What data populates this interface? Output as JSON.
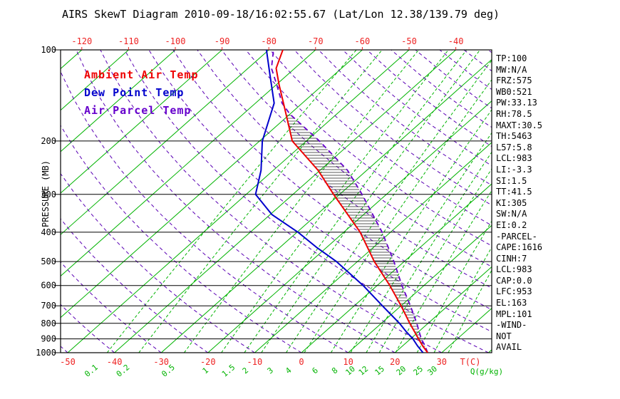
{
  "title": "AIRS SkewT Diagram 2010-09-18/16:02:55.67 (Lat/Lon 12.38/139.79 deg)",
  "legend": {
    "ambient": {
      "label": "Ambient Air Temp",
      "color": "#ee0000"
    },
    "dewpoint": {
      "label": "Dew Point Temp",
      "color": "#0000cc"
    },
    "parcel": {
      "label": "Air Parcel Temp",
      "color": "#6600cc"
    }
  },
  "stats": [
    "TP:100",
    "MW:N/A",
    "FRZ:575",
    "WB0:521",
    "PW:33.13",
    "RH:78.5",
    "MAXT:30.5",
    "TH:5463",
    "L57:5.8",
    "LCL:983",
    "LI:-3.3",
    "SI:1.5",
    "TT:41.5",
    "KI:305",
    "SW:N/A",
    "EI:0.2",
    "-PARCEL-",
    "CAPE:1616",
    "CINH:7",
    "LCL:983",
    "CAP:0.0",
    "LFC:953",
    "EL:163",
    "MPL:101",
    "-WIND-",
    "NOT",
    "AVAIL"
  ],
  "chart_data": {
    "type": "line",
    "subtype": "skewt-logp",
    "title": "AIRS SkewT Diagram 2010-09-18/16:02:55.67 (Lat/Lon 12.38/139.79 deg)",
    "xlabel": "T(C)",
    "ylabel": "PRESSURE (MB)",
    "q_axis_label": "Q(g/kg)",
    "pressure_scale": "log",
    "pressure_range": [
      100,
      1000
    ],
    "temp_range_bottom_axis": [
      -50,
      40
    ],
    "x_top_ticks": [
      -120,
      -110,
      -100,
      -90,
      -80,
      -70,
      -60,
      -50,
      -40
    ],
    "x_bottom_ticks": [
      -50,
      -40,
      -30,
      -20,
      -10,
      0,
      10,
      20,
      30
    ],
    "pressure_ticks": [
      100,
      200,
      300,
      400,
      500,
      600,
      700,
      800,
      900,
      1000
    ],
    "mixing_ratio_lines": [
      0.1,
      0.2,
      0.5,
      1,
      1.5,
      2,
      3,
      4,
      6,
      8,
      10,
      12,
      15,
      20,
      25,
      30
    ],
    "isotherm_step_c": 10,
    "dry_adiabat_step_c": 10,
    "grid": true,
    "legend_position": "upper-left-inside",
    "series": [
      {
        "name": "Ambient Air Temp",
        "color": "#ee0000",
        "style": "solid",
        "points_p_t": [
          [
            1000,
            27.0
          ],
          [
            950,
            24.3
          ],
          [
            900,
            21.7
          ],
          [
            850,
            19.0
          ],
          [
            800,
            16.1
          ],
          [
            700,
            10.0
          ],
          [
            600,
            2.7
          ],
          [
            500,
            -6.4
          ],
          [
            400,
            -16.5
          ],
          [
            300,
            -31.3
          ],
          [
            250,
            -40.4
          ],
          [
            200,
            -53.0
          ],
          [
            150,
            -64.0
          ],
          [
            130,
            -69.5
          ],
          [
            115,
            -74.0
          ],
          [
            100,
            -77.0
          ]
        ]
      },
      {
        "name": "Dew Point Temp",
        "color": "#0000cc",
        "style": "solid",
        "points_p_t": [
          [
            1000,
            26.0
          ],
          [
            950,
            23.2
          ],
          [
            900,
            20.5
          ],
          [
            850,
            17.2
          ],
          [
            800,
            13.9
          ],
          [
            700,
            6.0
          ],
          [
            600,
            -3.0
          ],
          [
            500,
            -14.5
          ],
          [
            450,
            -22.0
          ],
          [
            400,
            -29.8
          ],
          [
            350,
            -39.6
          ],
          [
            300,
            -48.0
          ],
          [
            250,
            -52.6
          ],
          [
            200,
            -59.4
          ],
          [
            150,
            -66.0
          ],
          [
            120,
            -74.0
          ],
          [
            100,
            -80.5
          ]
        ]
      },
      {
        "name": "Air Parcel Temp",
        "color": "#6600cc",
        "style": "dashed",
        "points_p_t": [
          [
            1000,
            27.0
          ],
          [
            950,
            24.8
          ],
          [
            900,
            22.3
          ],
          [
            850,
            20.0
          ],
          [
            800,
            17.6
          ],
          [
            700,
            12.0
          ],
          [
            600,
            5.3
          ],
          [
            500,
            -2.2
          ],
          [
            400,
            -11.8
          ],
          [
            300,
            -25.2
          ],
          [
            250,
            -34.1
          ],
          [
            200,
            -47.2
          ],
          [
            163,
            -60.0
          ],
          [
            150,
            -64.3
          ],
          [
            130,
            -70.0
          ],
          [
            115,
            -75.0
          ],
          [
            100,
            -79.0
          ]
        ]
      }
    ],
    "cape_hatch_between": [
      "Air Parcel Temp",
      "Ambient Air Temp"
    ],
    "colors": {
      "isotherms": "#00b300",
      "mixing": "#00b300",
      "adiabats": "#5a00b4",
      "axis": "#000000",
      "hatch": "#202020",
      "tick_red": "#ee2222",
      "background": "#ffffff"
    }
  }
}
